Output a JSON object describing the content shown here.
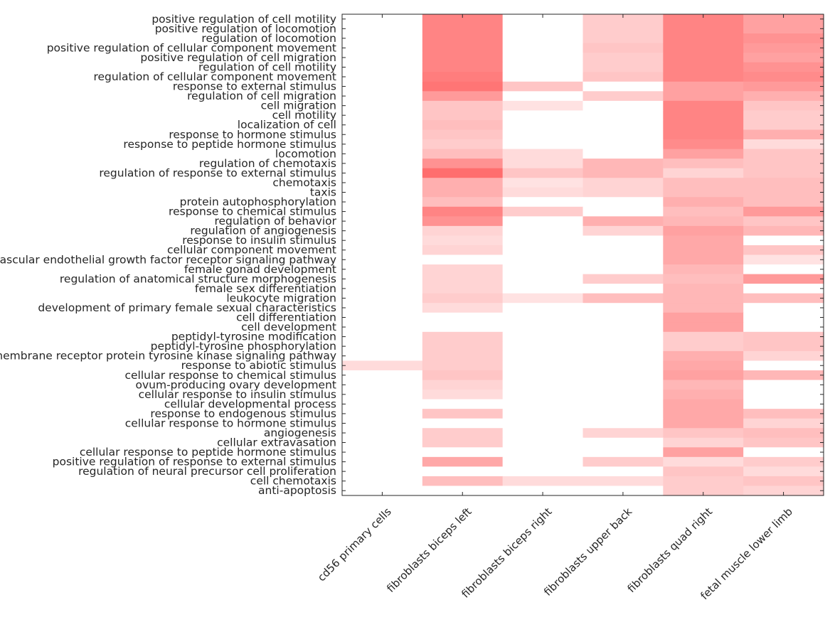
{
  "chart_data": {
    "type": "heatmap",
    "title": "",
    "xlabel": "",
    "ylabel": "",
    "color_low": "#ffffff",
    "color_high": "#ff6e6e",
    "value_range": [
      0,
      1
    ],
    "columns": [
      "cd56 primary cells",
      "fibroblasts biceps left",
      "fibroblasts biceps right",
      "fibroblasts upper back",
      "fibroblasts quad right",
      "fetal muscle lower limb"
    ],
    "rows": [
      "positive regulation of cell motility",
      "positive regulation of locomotion",
      "regulation of locomotion",
      "positive regulation of cellular component movement",
      "positive regulation of cell migration",
      "regulation of cell motility",
      "regulation of cellular component movement",
      "response to external stimulus",
      "regulation of cell migration",
      "cell migration",
      "cell motility",
      "localization of cell",
      "response to hormone stimulus",
      "response to peptide hormone stimulus",
      "locomotion",
      "regulation of chemotaxis",
      "regulation of response to external stimulus",
      "chemotaxis",
      "taxis",
      "protein autophosphorylation",
      "response to chemical stimulus",
      "regulation of behavior",
      "regulation of angiogenesis",
      "response to insulin stimulus",
      "cellular component movement",
      "vascular endothelial growth factor receptor signaling pathway",
      "female gonad development",
      "regulation of anatomical structure morphogenesis",
      "female sex differentiation",
      "leukocyte migration",
      "development of primary female sexual characteristics",
      "cell differentiation",
      "cell development",
      "peptidyl-tyrosine modification",
      "peptidyl-tyrosine phosphorylation",
      "transmembrane receptor protein tyrosine kinase signaling pathway",
      "response to abiotic stimulus",
      "cellular response to chemical stimulus",
      "ovum-producing ovary development",
      "cellular response to insulin stimulus",
      "cellular developmental process",
      "response to endogenous stimulus",
      "cellular response to hormone stimulus",
      "angiogenesis",
      "cellular extravasation",
      "cellular response to peptide hormone stimulus",
      "positive regulation of response to external stimulus",
      "regulation of neural precursor cell proliferation",
      "cell chemotaxis",
      "anti-apoptosis"
    ],
    "values": [
      [
        0,
        0.85,
        0,
        0.35,
        0.85,
        0.65
      ],
      [
        0,
        0.85,
        0,
        0.35,
        0.85,
        0.65
      ],
      [
        0,
        0.85,
        0,
        0.35,
        0.85,
        0.75
      ],
      [
        0,
        0.85,
        0,
        0.4,
        0.85,
        0.7
      ],
      [
        0,
        0.85,
        0,
        0.35,
        0.85,
        0.65
      ],
      [
        0,
        0.85,
        0,
        0.35,
        0.85,
        0.75
      ],
      [
        0,
        0.9,
        0,
        0.4,
        0.85,
        0.8
      ],
      [
        0,
        0.95,
        0.4,
        0,
        0.65,
        0.7
      ],
      [
        0,
        0.7,
        0,
        0.35,
        0.65,
        0.55
      ],
      [
        0,
        0.4,
        0.2,
        0,
        0.85,
        0.4
      ],
      [
        0,
        0.4,
        0,
        0,
        0.85,
        0.35
      ],
      [
        0,
        0.45,
        0,
        0,
        0.85,
        0.35
      ],
      [
        0,
        0.4,
        0,
        0,
        0.85,
        0.55
      ],
      [
        0,
        0.35,
        0,
        0,
        0.8,
        0.25
      ],
      [
        0,
        0.45,
        0.25,
        0,
        0.65,
        0.4
      ],
      [
        0,
        0.75,
        0.25,
        0.5,
        0.45,
        0.4
      ],
      [
        0,
        1.0,
        0.4,
        0.5,
        0.3,
        0.4
      ],
      [
        0,
        0.55,
        0.2,
        0.3,
        0.45,
        0.45
      ],
      [
        0,
        0.55,
        0.25,
        0.3,
        0.45,
        0.45
      ],
      [
        0,
        0.45,
        0,
        0,
        0.55,
        0.45
      ],
      [
        0,
        0.85,
        0.35,
        0,
        0.45,
        0.7
      ],
      [
        0,
        0.75,
        0,
        0.55,
        0.5,
        0.4
      ],
      [
        0,
        0.3,
        0,
        0.3,
        0.65,
        0.5
      ],
      [
        0,
        0.25,
        0,
        0,
        0.6,
        0
      ],
      [
        0,
        0.3,
        0,
        0,
        0.6,
        0.4
      ],
      [
        0,
        0,
        0,
        0,
        0.6,
        0.2
      ],
      [
        0,
        0.3,
        0,
        0,
        0.5,
        0
      ],
      [
        0,
        0.3,
        0,
        0.35,
        0.45,
        0.7
      ],
      [
        0,
        0.3,
        0,
        0,
        0.5,
        0
      ],
      [
        0,
        0.35,
        0.2,
        0.45,
        0.5,
        0.45
      ],
      [
        0,
        0.25,
        0,
        0,
        0.5,
        0
      ],
      [
        0,
        0,
        0,
        0,
        0.65,
        0
      ],
      [
        0,
        0,
        0,
        0,
        0.65,
        0
      ],
      [
        0,
        0.35,
        0,
        0,
        0.35,
        0.4
      ],
      [
        0,
        0.35,
        0,
        0,
        0.35,
        0.4
      ],
      [
        0,
        0.35,
        0,
        0,
        0.55,
        0.3
      ],
      [
        0.25,
        0.35,
        0,
        0,
        0.6,
        0
      ],
      [
        0,
        0.4,
        0,
        0,
        0.65,
        0.5
      ],
      [
        0,
        0.3,
        0,
        0,
        0.5,
        0
      ],
      [
        0,
        0.25,
        0,
        0,
        0.55,
        0
      ],
      [
        0,
        0,
        0,
        0,
        0.6,
        0
      ],
      [
        0,
        0.4,
        0,
        0,
        0.6,
        0.45
      ],
      [
        0,
        0,
        0,
        0,
        0.6,
        0.3
      ],
      [
        0,
        0.35,
        0,
        0.3,
        0.4,
        0.45
      ],
      [
        0,
        0.35,
        0,
        0,
        0.3,
        0.4
      ],
      [
        0,
        0,
        0,
        0,
        0.65,
        0
      ],
      [
        0,
        0.6,
        0,
        0.35,
        0.25,
        0.35
      ],
      [
        0,
        0,
        0,
        0,
        0.4,
        0.25
      ],
      [
        0,
        0.45,
        0.25,
        0.25,
        0.35,
        0.4
      ],
      [
        0,
        0,
        0,
        0,
        0.35,
        0.3
      ]
    ]
  }
}
